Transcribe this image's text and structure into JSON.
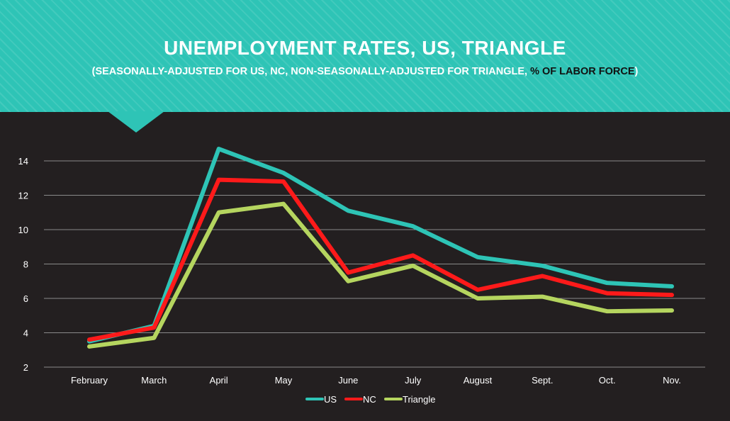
{
  "header": {
    "title": "UNEMPLOYMENT RATES, US, TRIANGLE",
    "subtitle_pre": "(SEASONALLY-ADJUSTED FOR US, NC, NON-SEASONALLY-ADJUSTED FOR TRIANGLE, ",
    "subtitle_dark": "% OF LABOR FORCE",
    "subtitle_post": ")"
  },
  "colors": {
    "banner": "#2ec4b6",
    "background": "#231f20",
    "grid": "#8a8a8a"
  },
  "chart_data": {
    "type": "line",
    "title": "UNEMPLOYMENT RATES, US, TRIANGLE",
    "subtitle": "(SEASONALLY-ADJUSTED FOR US, NC, NON-SEASONALLY-ADJUSTED FOR TRIANGLE, % OF LABOR FORCE)",
    "xlabel": "",
    "ylabel": "",
    "categories": [
      "February",
      "March",
      "April",
      "May",
      "June",
      "July",
      "August",
      "Sept.",
      "Oct.",
      "Nov."
    ],
    "ylim": [
      2,
      14
    ],
    "yticks": [
      2,
      4,
      6,
      8,
      10,
      12,
      14
    ],
    "grid": true,
    "legend": "bottom",
    "series": [
      {
        "name": "US",
        "color": "#2ec4b6",
        "values": [
          3.5,
          4.4,
          14.7,
          13.3,
          11.1,
          10.2,
          8.4,
          7.9,
          6.9,
          6.7
        ]
      },
      {
        "name": "NC",
        "color": "#ff1a1a",
        "values": [
          3.6,
          4.3,
          12.9,
          12.8,
          7.5,
          8.5,
          6.5,
          7.3,
          6.3,
          6.2
        ]
      },
      {
        "name": "Triangle",
        "color": "#b5d55f",
        "values": [
          3.2,
          3.7,
          11.0,
          11.5,
          7.0,
          7.9,
          6.0,
          6.1,
          5.25,
          5.3
        ]
      }
    ]
  }
}
